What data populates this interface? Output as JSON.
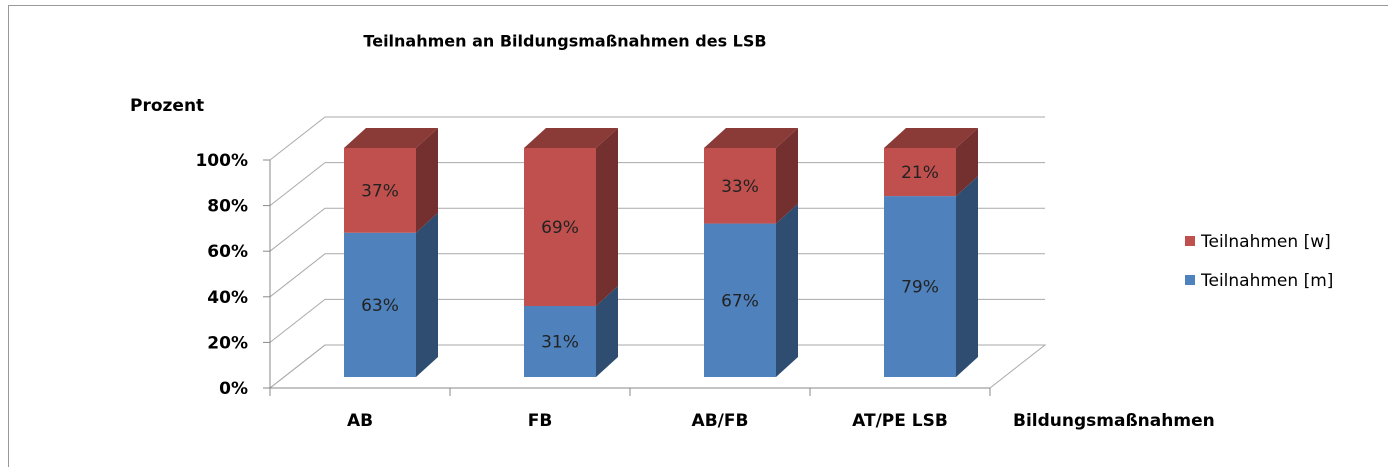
{
  "chart_data": {
    "type": "bar3d_stacked",
    "title": "Teilnahmen an Bildungsmaßnahmen des LSB",
    "y_label": "Prozent",
    "x_label": "Bildungsmaßnahmen",
    "categories": [
      "AB",
      "FB",
      "AB/FB",
      "AT/PE LSB"
    ],
    "series": [
      {
        "name": "Teilnahmen [m]",
        "color": "#4f81bd",
        "values": [
          63,
          31,
          67,
          79
        ],
        "value_labels": [
          "63%",
          "31%",
          "67%",
          "79%"
        ]
      },
      {
        "name": "Teilnahmen [w]",
        "color": "#c0504d",
        "values": [
          37,
          69,
          33,
          21
        ],
        "value_labels": [
          "37%",
          "69%",
          "33%",
          "21%"
        ]
      }
    ],
    "ylim": [
      0,
      100
    ],
    "yticks": [
      {
        "value": 0,
        "label": "0%"
      },
      {
        "value": 20,
        "label": "20%"
      },
      {
        "value": 40,
        "label": "40%"
      },
      {
        "value": 60,
        "label": "60%"
      },
      {
        "value": 80,
        "label": "80%"
      },
      {
        "value": 100,
        "label": "100%"
      }
    ],
    "grid": true,
    "legend": "right"
  }
}
